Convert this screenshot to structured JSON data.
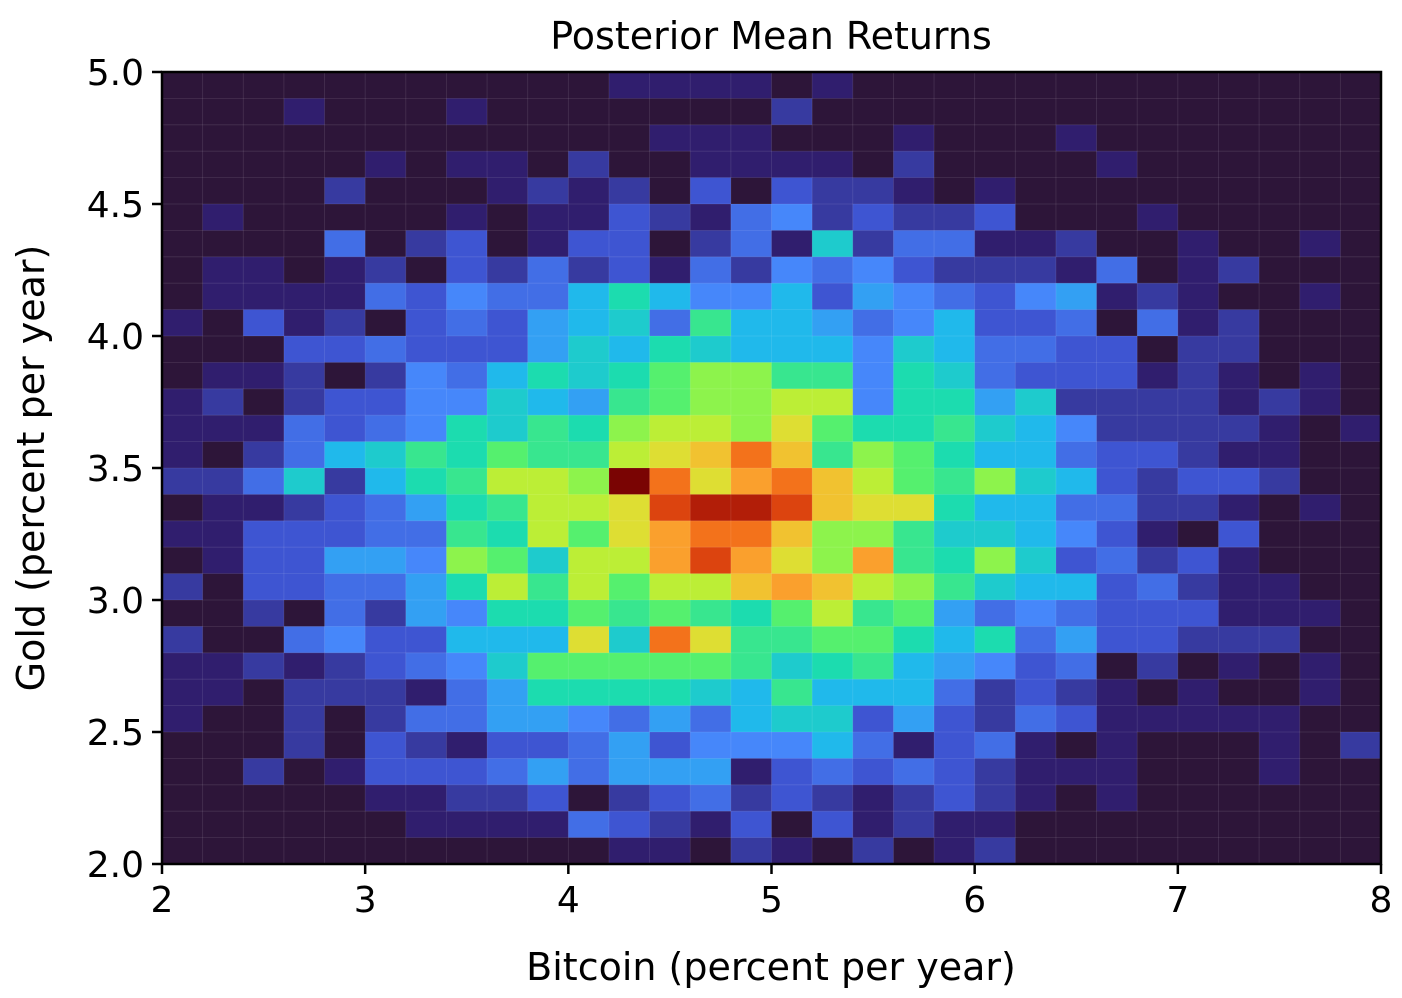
{
  "chart_data": {
    "type": "heatmap",
    "title": "Posterior Mean Returns",
    "xlabel": "Bitcoin (percent per year)",
    "ylabel": "Gold (percent per year)",
    "xlim": [
      2,
      8
    ],
    "ylim": [
      2.0,
      5.0
    ],
    "x_ticks": [
      "2",
      "3",
      "4",
      "5",
      "6",
      "7",
      "8"
    ],
    "y_ticks": [
      "2.0",
      "2.5",
      "3.0",
      "3.5",
      "4.0",
      "4.5",
      "5.0"
    ],
    "x_tick_values": [
      2,
      3,
      4,
      5,
      6,
      7,
      8
    ],
    "y_tick_values": [
      2.0,
      2.5,
      3.0,
      3.5,
      4.0,
      4.5,
      5.0
    ],
    "colormap": "turbo",
    "grid": false,
    "bins": {
      "x_start": 2,
      "x_step": 0.2,
      "nx": 30,
      "y_start": 2.0,
      "y_step": 0.1,
      "ny": 30
    },
    "counts_top_to_bottom": [
      [
        0,
        0,
        0,
        0,
        0,
        0,
        0,
        0,
        0,
        0,
        0,
        1,
        1,
        1,
        1,
        0,
        1,
        0,
        0,
        0,
        0,
        0,
        0,
        0,
        0,
        0,
        0,
        0,
        0,
        0
      ],
      [
        0,
        0,
        0,
        1,
        0,
        0,
        0,
        1,
        0,
        0,
        0,
        0,
        0,
        0,
        0,
        2,
        0,
        0,
        0,
        0,
        0,
        0,
        0,
        0,
        0,
        0,
        0,
        0,
        0,
        0
      ],
      [
        0,
        0,
        0,
        0,
        0,
        0,
        0,
        0,
        0,
        0,
        0,
        0,
        1,
        1,
        1,
        0,
        0,
        0,
        1,
        0,
        0,
        0,
        1,
        0,
        0,
        0,
        0,
        0,
        0,
        0
      ],
      [
        0,
        0,
        0,
        0,
        0,
        1,
        0,
        1,
        1,
        0,
        2,
        0,
        0,
        1,
        1,
        1,
        1,
        0,
        2,
        0,
        0,
        0,
        0,
        1,
        0,
        0,
        0,
        0,
        0,
        0
      ],
      [
        0,
        0,
        0,
        0,
        2,
        0,
        0,
        0,
        1,
        2,
        1,
        2,
        0,
        3,
        0,
        3,
        2,
        2,
        1,
        0,
        1,
        0,
        0,
        0,
        0,
        0,
        0,
        0,
        0,
        0
      ],
      [
        0,
        1,
        0,
        0,
        0,
        0,
        0,
        1,
        0,
        1,
        1,
        3,
        2,
        1,
        4,
        5,
        2,
        3,
        2,
        2,
        3,
        0,
        0,
        0,
        1,
        0,
        0,
        0,
        0,
        0
      ],
      [
        0,
        0,
        0,
        0,
        4,
        0,
        2,
        3,
        0,
        1,
        3,
        3,
        0,
        2,
        4,
        1,
        8,
        2,
        4,
        4,
        1,
        1,
        2,
        0,
        0,
        1,
        0,
        0,
        1,
        0
      ],
      [
        0,
        1,
        1,
        0,
        1,
        2,
        0,
        3,
        2,
        4,
        2,
        3,
        1,
        4,
        2,
        5,
        4,
        5,
        3,
        2,
        2,
        2,
        1,
        4,
        0,
        1,
        2,
        0,
        0,
        0
      ],
      [
        0,
        1,
        1,
        1,
        1,
        4,
        3,
        5,
        4,
        4,
        7,
        9,
        7,
        5,
        5,
        7,
        3,
        6,
        5,
        4,
        3,
        5,
        6,
        1,
        2,
        1,
        0,
        0,
        1,
        0
      ],
      [
        1,
        0,
        3,
        1,
        2,
        0,
        3,
        4,
        3,
        6,
        7,
        8,
        4,
        10,
        7,
        7,
        6,
        4,
        5,
        7,
        3,
        3,
        4,
        0,
        4,
        1,
        2,
        0,
        0,
        0
      ],
      [
        0,
        0,
        0,
        3,
        3,
        4,
        3,
        3,
        3,
        6,
        8,
        7,
        9,
        8,
        7,
        7,
        7,
        5,
        8,
        7,
        4,
        4,
        3,
        3,
        0,
        2,
        2,
        0,
        0,
        0
      ],
      [
        0,
        1,
        1,
        2,
        0,
        2,
        5,
        4,
        7,
        9,
        8,
        9,
        11,
        12,
        12,
        10,
        10,
        5,
        9,
        8,
        4,
        3,
        3,
        3,
        1,
        2,
        1,
        0,
        1,
        0
      ],
      [
        1,
        2,
        0,
        2,
        3,
        3,
        5,
        5,
        8,
        7,
        6,
        10,
        11,
        12,
        12,
        13,
        13,
        5,
        9,
        9,
        6,
        8,
        2,
        2,
        2,
        2,
        1,
        2,
        1,
        0
      ],
      [
        1,
        1,
        1,
        4,
        3,
        4,
        5,
        9,
        8,
        10,
        9,
        12,
        13,
        13,
        12,
        14,
        11,
        9,
        9,
        10,
        8,
        7,
        5,
        2,
        2,
        2,
        2,
        1,
        0,
        1
      ],
      [
        1,
        0,
        2,
        4,
        7,
        8,
        10,
        9,
        11,
        10,
        10,
        13,
        14,
        15,
        17,
        15,
        10,
        12,
        11,
        9,
        7,
        7,
        4,
        3,
        3,
        2,
        1,
        1,
        0,
        0
      ],
      [
        2,
        2,
        4,
        8,
        2,
        7,
        9,
        10,
        13,
        13,
        12,
        20,
        17,
        14,
        16,
        17,
        15,
        13,
        11,
        10,
        12,
        8,
        7,
        3,
        2,
        3,
        3,
        2,
        0,
        0
      ],
      [
        0,
        1,
        1,
        2,
        3,
        4,
        6,
        9,
        10,
        13,
        13,
        14,
        18,
        19,
        19,
        18,
        15,
        14,
        14,
        9,
        7,
        7,
        4,
        4,
        2,
        2,
        1,
        0,
        1,
        0
      ],
      [
        1,
        1,
        3,
        3,
        3,
        4,
        4,
        10,
        9,
        13,
        11,
        14,
        16,
        17,
        17,
        15,
        12,
        12,
        10,
        8,
        8,
        7,
        5,
        3,
        1,
        0,
        3,
        0,
        0,
        0
      ],
      [
        0,
        1,
        3,
        3,
        6,
        6,
        5,
        12,
        11,
        8,
        13,
        13,
        16,
        18,
        16,
        14,
        12,
        16,
        10,
        9,
        12,
        8,
        3,
        4,
        2,
        3,
        1,
        0,
        0,
        0
      ],
      [
        2,
        0,
        3,
        3,
        4,
        4,
        6,
        9,
        13,
        10,
        13,
        11,
        13,
        13,
        15,
        16,
        15,
        13,
        12,
        10,
        8,
        7,
        7,
        3,
        4,
        2,
        1,
        1,
        0,
        0
      ],
      [
        0,
        0,
        2,
        0,
        4,
        2,
        6,
        5,
        9,
        9,
        11,
        10,
        11,
        10,
        9,
        11,
        13,
        10,
        11,
        6,
        4,
        5,
        4,
        3,
        3,
        3,
        1,
        1,
        1,
        0
      ],
      [
        2,
        0,
        0,
        4,
        5,
        3,
        3,
        7,
        7,
        7,
        14,
        8,
        17,
        14,
        10,
        10,
        11,
        11,
        9,
        7,
        9,
        4,
        6,
        3,
        3,
        2,
        2,
        2,
        0,
        0
      ],
      [
        1,
        1,
        2,
        1,
        2,
        3,
        4,
        5,
        8,
        11,
        11,
        11,
        11,
        11,
        10,
        8,
        9,
        10,
        7,
        6,
        5,
        3,
        4,
        0,
        2,
        0,
        1,
        0,
        1,
        0
      ],
      [
        1,
        1,
        0,
        2,
        2,
        2,
        1,
        4,
        6,
        9,
        9,
        9,
        9,
        8,
        7,
        10,
        7,
        7,
        7,
        4,
        2,
        3,
        2,
        1,
        0,
        1,
        0,
        0,
        1,
        0
      ],
      [
        1,
        0,
        0,
        2,
        0,
        2,
        4,
        4,
        6,
        6,
        5,
        4,
        6,
        4,
        7,
        8,
        8,
        3,
        6,
        3,
        2,
        4,
        3,
        1,
        1,
        1,
        1,
        1,
        0,
        0
      ],
      [
        0,
        0,
        0,
        2,
        0,
        3,
        2,
        1,
        3,
        3,
        4,
        6,
        3,
        5,
        5,
        5,
        7,
        4,
        1,
        3,
        4,
        1,
        0,
        1,
        0,
        0,
        0,
        1,
        0,
        2
      ],
      [
        0,
        0,
        2,
        0,
        1,
        3,
        3,
        3,
        4,
        6,
        4,
        6,
        6,
        6,
        1,
        3,
        4,
        3,
        4,
        3,
        2,
        1,
        1,
        1,
        0,
        0,
        0,
        1,
        0,
        0
      ],
      [
        0,
        0,
        0,
        0,
        0,
        1,
        1,
        2,
        2,
        3,
        0,
        2,
        3,
        4,
        2,
        3,
        2,
        1,
        2,
        3,
        2,
        1,
        0,
        1,
        0,
        0,
        0,
        0,
        0,
        0
      ],
      [
        0,
        0,
        0,
        0,
        0,
        0,
        1,
        1,
        1,
        1,
        4,
        3,
        2,
        1,
        3,
        0,
        3,
        1,
        2,
        1,
        1,
        0,
        0,
        0,
        0,
        0,
        0,
        0,
        0,
        0
      ],
      [
        0,
        0,
        0,
        0,
        0,
        0,
        0,
        0,
        0,
        0,
        0,
        1,
        1,
        0,
        2,
        1,
        0,
        2,
        0,
        1,
        2,
        0,
        0,
        0,
        0,
        0,
        0,
        0,
        0,
        0
      ]
    ]
  }
}
